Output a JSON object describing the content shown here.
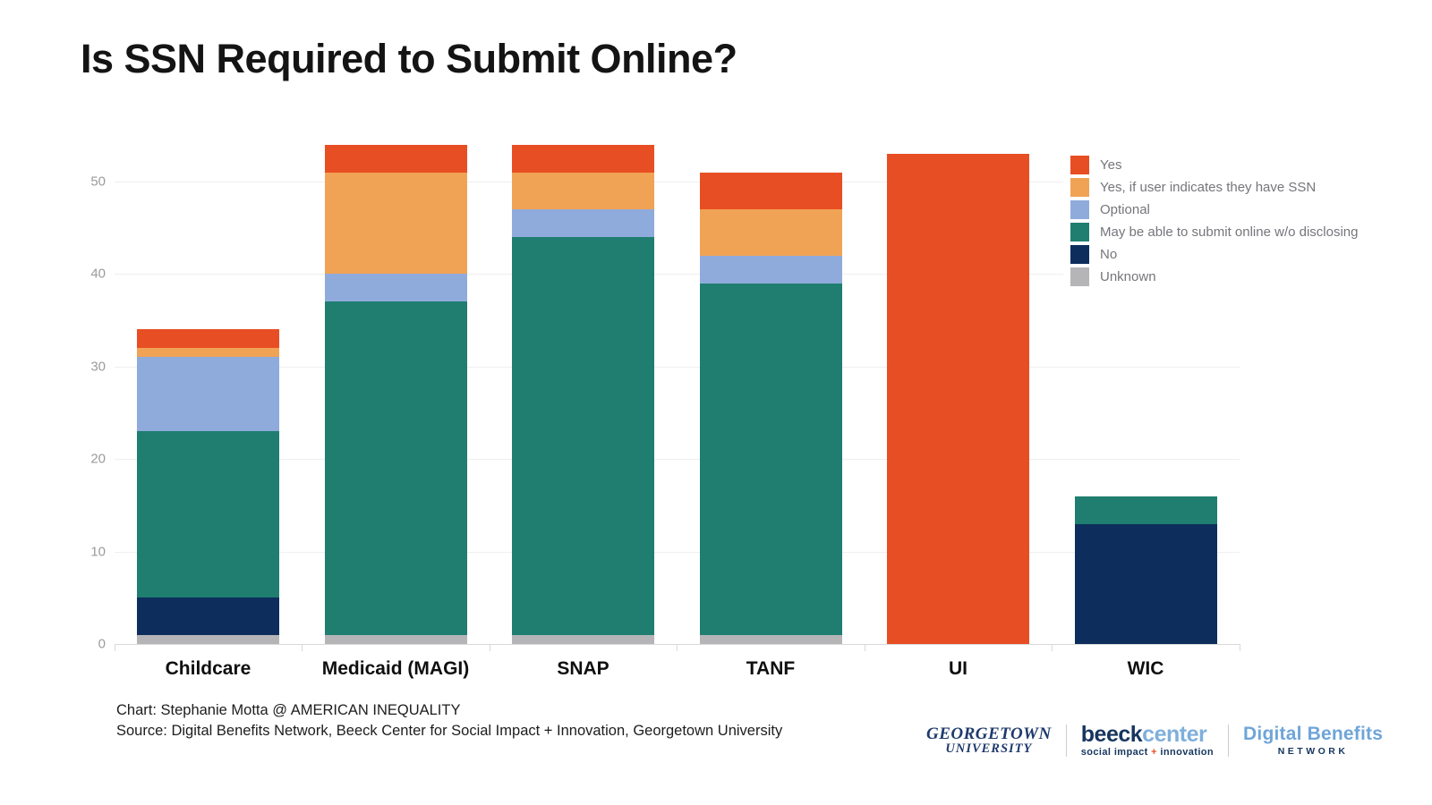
{
  "title": "Is SSN Required to Submit Online?",
  "chart_data": {
    "type": "bar",
    "stacked": true,
    "title": "Is SSN Required to Submit Online?",
    "xlabel": "",
    "ylabel": "",
    "categories": [
      "Childcare",
      "Medicaid (MAGI)",
      "SNAP",
      "TANF",
      "UI",
      "WIC"
    ],
    "series": [
      {
        "name": "Yes",
        "color": "#e84e24",
        "values": [
          2,
          3,
          3,
          4,
          53,
          0
        ]
      },
      {
        "name": "Yes, if user indicates they have SSN",
        "color": "#f0a355",
        "values": [
          1,
          11,
          4,
          5,
          0,
          0
        ]
      },
      {
        "name": "Optional",
        "color": "#8fabdc",
        "values": [
          8,
          3,
          3,
          3,
          0,
          0
        ]
      },
      {
        "name": "May be able to submit online w/o disclosing",
        "color": "#1f7e6f",
        "values": [
          18,
          36,
          43,
          38,
          0,
          3
        ]
      },
      {
        "name": "No",
        "color": "#0d2e5d",
        "values": [
          4,
          0,
          0,
          0,
          0,
          13
        ]
      },
      {
        "name": "Unknown",
        "color": "#b5b5b8",
        "values": [
          1,
          1,
          1,
          1,
          0,
          0
        ]
      }
    ],
    "stack_note": "series listed top-to-bottom as in legend; bars stack in reverse (Unknown at bottom, Yes on top)",
    "y_ticks": [
      0,
      10,
      20,
      30,
      40,
      50
    ],
    "ylim": [
      0,
      56
    ],
    "grid": true,
    "legend_position": "top-right"
  },
  "footer": {
    "chart_credit": "Chart: Stephanie Motta @ AMERICAN INEQUALITY",
    "source": "Source: Digital Benefits Network, Beeck Center for Social Impact + Innovation, Georgetown University"
  },
  "logos": {
    "georgetown": {
      "line1": "GEORGETOWN",
      "line2": "UNIVERSITY"
    },
    "beeck": {
      "part1": "beeck",
      "part2": "center",
      "tagline_left": "social impact ",
      "tagline_plus": "+",
      "tagline_right": " innovation"
    },
    "digital_benefits": {
      "line1": "Digital Benefits",
      "line2": "NETWORK"
    }
  },
  "colors": {
    "background": "#ffffff",
    "gridline": "#efefef",
    "axis_line": "#d9d9d9",
    "tick_label": "#9b9b9b",
    "legend_text": "#75757b",
    "navy_logo": "#16365f",
    "lightblue_logo": "#7fafdb"
  }
}
